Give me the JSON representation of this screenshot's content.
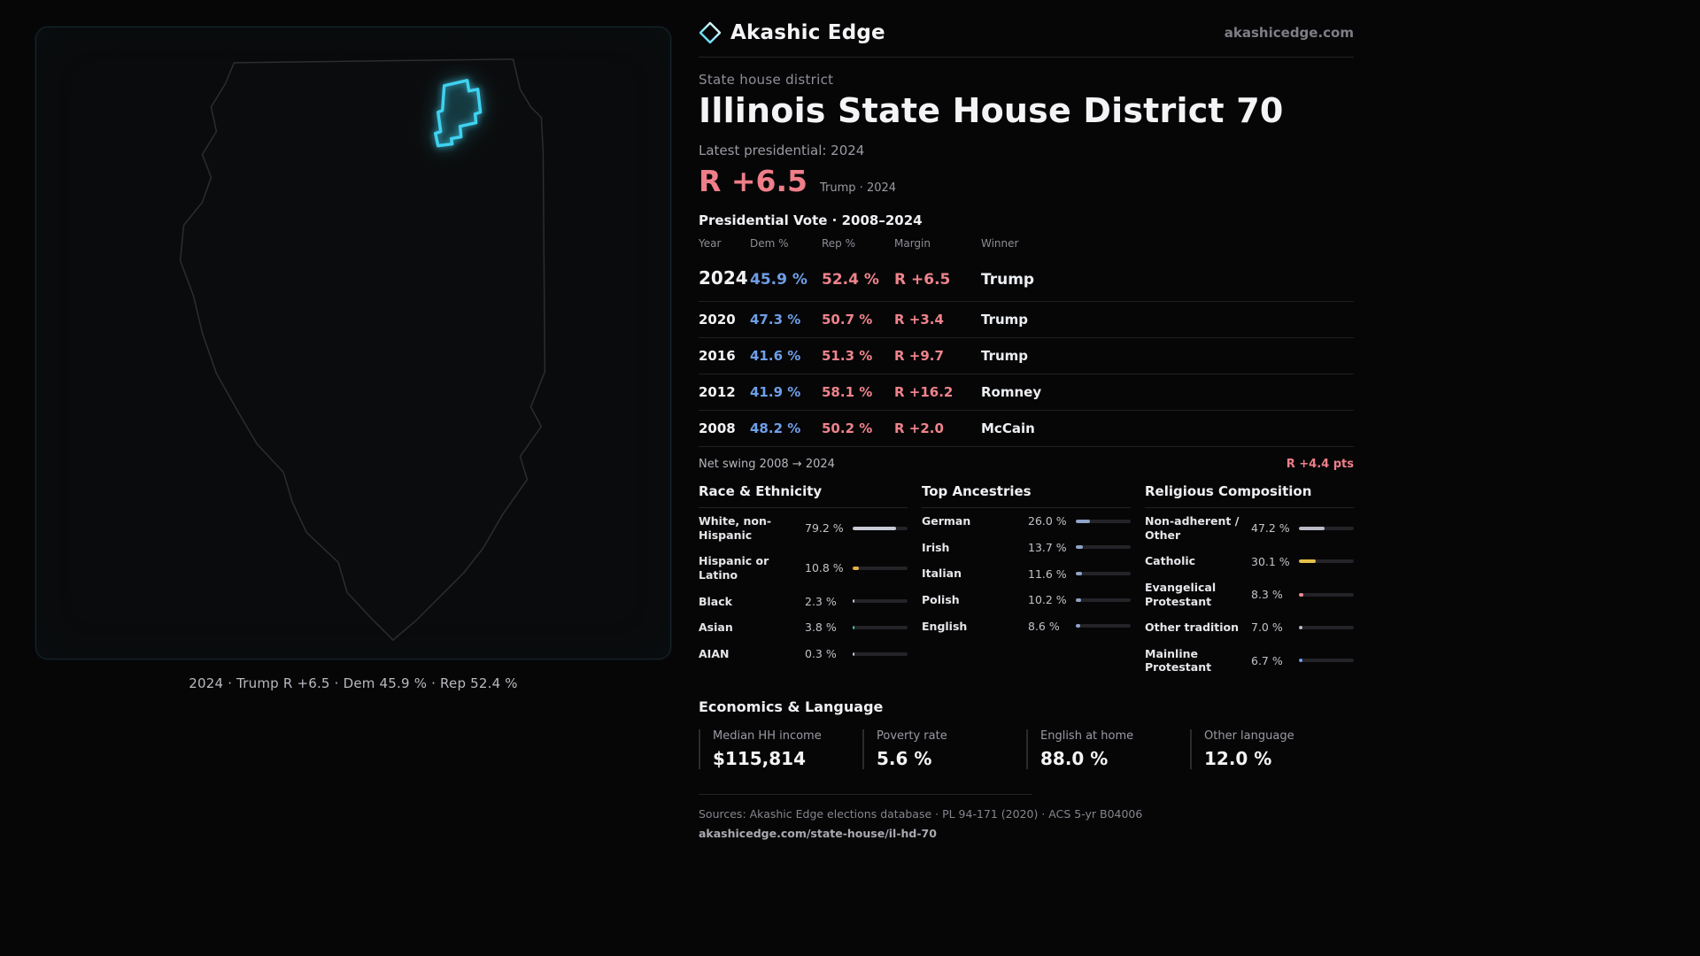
{
  "brand": {
    "name": "Akashic Edge",
    "site": "akashicedge.com"
  },
  "page": {
    "eyebrow": "State house district",
    "title": "Illinois State House District 70",
    "latest_label": "Latest presidential: 2024",
    "headline_margin": "R +6.5",
    "headline_context": "Trump · 2024"
  },
  "map": {
    "caption": "2024 · Trump  R +6.5 · Dem 45.9 % · Rep 52.4 %"
  },
  "vote_table": {
    "title": "Presidential Vote · 2008–2024",
    "columns": [
      "Year",
      "Dem %",
      "Rep %",
      "Margin",
      "Winner"
    ],
    "rows": [
      {
        "year": "2024",
        "dem": "45.9 %",
        "rep": "52.4 %",
        "margin": "R +6.5",
        "winner": "Trump"
      },
      {
        "year": "2020",
        "dem": "47.3 %",
        "rep": "50.7 %",
        "margin": "R +3.4",
        "winner": "Trump"
      },
      {
        "year": "2016",
        "dem": "41.6 %",
        "rep": "51.3 %",
        "margin": "R +9.7",
        "winner": "Trump"
      },
      {
        "year": "2012",
        "dem": "41.9 %",
        "rep": "58.1 %",
        "margin": "R +16.2",
        "winner": "Romney"
      },
      {
        "year": "2008",
        "dem": "48.2 %",
        "rep": "50.2 %",
        "margin": "R +2.0",
        "winner": "McCain"
      }
    ]
  },
  "net_swing": {
    "label": "Net swing 2008 → 2024",
    "value": "R +4.4 pts"
  },
  "demographics": {
    "race": {
      "title": "Race & Ethnicity",
      "rows": [
        {
          "label": "White, non-Hispanic",
          "value": "79.2 %",
          "pct": 79.2,
          "color": "#c7c9d4"
        },
        {
          "label": "Hispanic or Latino",
          "value": "10.8 %",
          "pct": 10.8,
          "color": "#e5b04a"
        },
        {
          "label": "Black",
          "value": "2.3 %",
          "pct": 2.3,
          "color": "#c7c9d4"
        },
        {
          "label": "Asian",
          "value": "3.8 %",
          "pct": 3.8,
          "color": "#4ec9a0"
        },
        {
          "label": "AIAN",
          "value": "0.3 %",
          "pct": 0.3,
          "color": "#c7c9d4"
        }
      ]
    },
    "ancestries": {
      "title": "Top Ancestries",
      "rows": [
        {
          "label": "German",
          "value": "26.0 %",
          "pct": 26.0,
          "color": "#8fa3c8"
        },
        {
          "label": "Irish",
          "value": "13.7 %",
          "pct": 13.7,
          "color": "#8fa3c8"
        },
        {
          "label": "Italian",
          "value": "11.6 %",
          "pct": 11.6,
          "color": "#8fa3c8"
        },
        {
          "label": "Polish",
          "value": "10.2 %",
          "pct": 10.2,
          "color": "#8fa3c8"
        },
        {
          "label": "English",
          "value": "8.6 %",
          "pct": 8.6,
          "color": "#8fa3c8"
        }
      ]
    },
    "religion": {
      "title": "Religious Composition",
      "rows": [
        {
          "label": "Non-adherent / Other",
          "value": "47.2 %",
          "pct": 47.2,
          "color": "#b9bcc6"
        },
        {
          "label": "Catholic",
          "value": "30.1 %",
          "pct": 30.1,
          "color": "#e5c04a"
        },
        {
          "label": "Evangelical Protestant",
          "value": "8.3 %",
          "pct": 8.3,
          "color": "#ef8a92"
        },
        {
          "label": "Other tradition",
          "value": "7.0 %",
          "pct": 7.0,
          "color": "#b9bcc6"
        },
        {
          "label": "Mainline Protestant",
          "value": "6.7 %",
          "pct": 6.7,
          "color": "#6f9fe8"
        }
      ]
    }
  },
  "economics": {
    "title": "Economics & Language",
    "stats": [
      {
        "label": "Median HH income",
        "value": "$115,814"
      },
      {
        "label": "Poverty rate",
        "value": "5.6 %"
      },
      {
        "label": "English at home",
        "value": "88.0 %"
      },
      {
        "label": "Other language",
        "value": "12.0 %"
      }
    ]
  },
  "footer": {
    "sources": "Sources: Akashic Edge elections database · PL 94-171 (2020) · ACS 5-yr B04006",
    "link": "akashicedge.com/state-house/il-hd-70"
  },
  "colors": {
    "dem": "#6f9fe8",
    "rep": "#ee838b",
    "accent": "#3fd2f0"
  }
}
